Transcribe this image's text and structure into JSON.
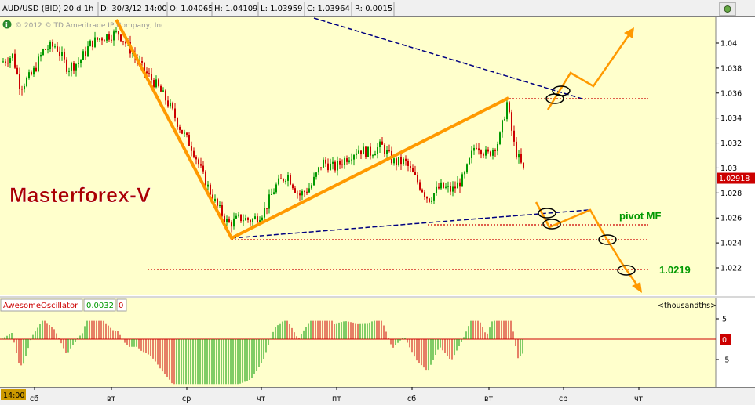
{
  "header": {
    "symbol": "AUD/USD (BID) 20 d 1h",
    "date": "D: 30/3/12 14:00",
    "open": "O: 1.04065",
    "high": "H: 1.04109",
    "low": "L: 1.03959",
    "close": "C: 1.03964",
    "range": "R: 0.0015"
  },
  "copyright": "© 2012 © TD Ameritrade IP Company, Inc.",
  "watermark": "Masterforex-V",
  "annotations": {
    "pivot_label": "pivot MF",
    "target_label": "1.0219"
  },
  "price_axis": {
    "ticks": [
      "1.04",
      "1.038",
      "1.036",
      "1.034",
      "1.032",
      "1.03",
      "1.028",
      "1.026",
      "1.024",
      "1.022"
    ],
    "tick_values": [
      1.04,
      1.038,
      1.036,
      1.034,
      1.032,
      1.03,
      1.028,
      1.026,
      1.024,
      1.022
    ],
    "current_price": "1.02918",
    "current_value": 1.02918
  },
  "oscillator": {
    "name": "AwesomeOscillator",
    "value": "0.0032",
    "value2": "0",
    "units": "<thousandths>",
    "ticks": [
      "5",
      "-5"
    ],
    "tick_values": [
      5,
      -5
    ],
    "zero_label": "0"
  },
  "time_axis": {
    "time_label": "14:00",
    "labels": [
      "сб",
      "вт",
      "ср",
      "чт",
      "пт",
      "сб",
      "вт",
      "ср",
      "чт"
    ]
  },
  "colors": {
    "background": "#ffffcc",
    "up": "#009900",
    "down": "#cc0000",
    "trend": "#ff9900",
    "dashed": "#000080",
    "level": "#cc0000",
    "green_text": "#009900",
    "watermark": "#aa0000"
  },
  "chart_data": {
    "type": "candlestick",
    "pair": "AUD/USD",
    "timeframe": "1h",
    "y_range": [
      1.02,
      1.0415
    ],
    "series": [
      {
        "label": "orange trend 1 (down)",
        "points": [
          [
            0,
            1.0415
          ],
          [
            1,
            1.0243
          ]
        ]
      },
      {
        "label": "orange trend 2 (up)",
        "points": [
          [
            1,
            1.0243
          ],
          [
            2,
            1.0355
          ]
        ]
      }
    ],
    "horizontal_levels": [
      1.0355,
      1.0255,
      1.0243,
      1.0219
    ],
    "oscillator_range": [
      -8,
      8
    ]
  }
}
